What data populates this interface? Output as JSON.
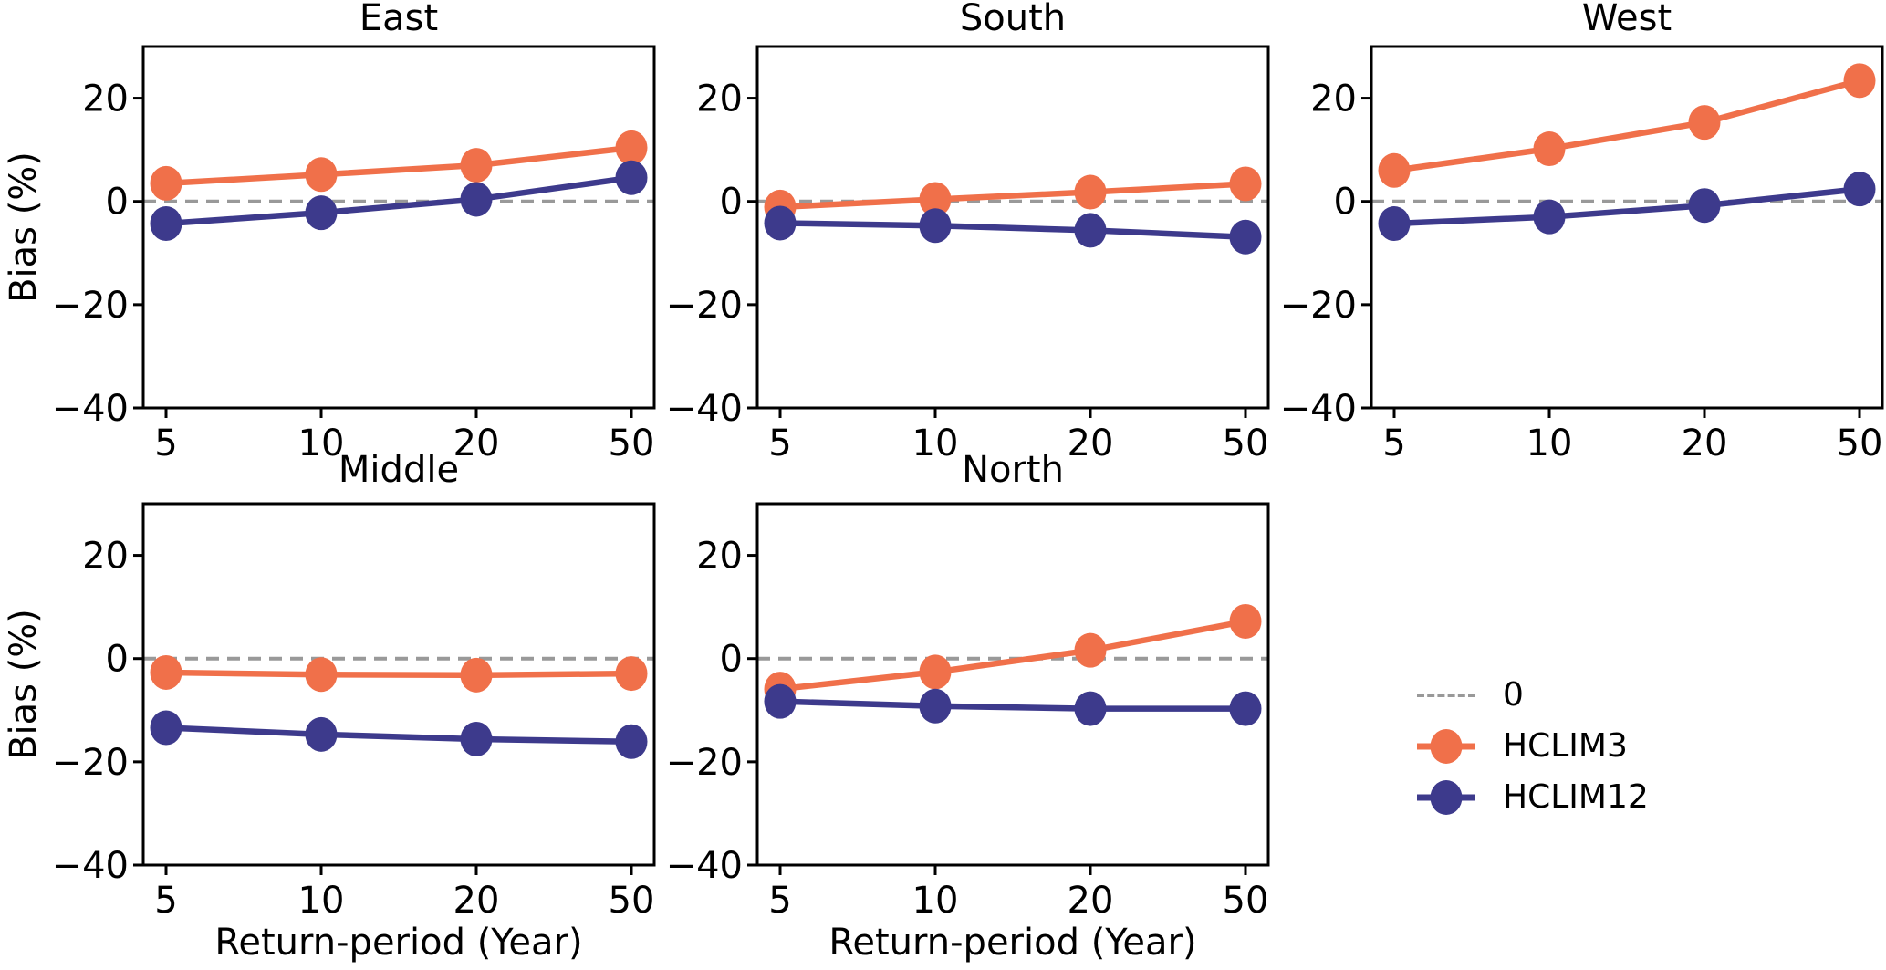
{
  "figure": {
    "ylabel": "Bias (%)",
    "xlabel": "Return-period (Year)",
    "colors": {
      "hclim3": "#F0704A",
      "hclim12": "#3D3A8C",
      "zero": "#999999",
      "axis": "#000000"
    },
    "legend": {
      "position": "lower-right-empty-slot",
      "items": [
        {
          "label": "0",
          "color_key": "zero",
          "style": "dashed-line"
        },
        {
          "label": "HCLIM3",
          "color_key": "hclim3",
          "style": "line-marker"
        },
        {
          "label": "HCLIM12",
          "color_key": "hclim12",
          "style": "line-marker"
        }
      ]
    }
  },
  "chart_data": [
    {
      "type": "line",
      "title": "East",
      "row": 0,
      "col": 0,
      "x": [
        5,
        10,
        20,
        50
      ],
      "xticklabels": [
        "5",
        "10",
        "20",
        "50"
      ],
      "ylim": [
        -40,
        30
      ],
      "yticks": [
        20,
        0,
        -20,
        -40
      ],
      "zero_line": true,
      "grid": false,
      "series": [
        {
          "name": "HCLIM3",
          "values": [
            3.5,
            5.2,
            7.0,
            10.4
          ]
        },
        {
          "name": "HCLIM12",
          "values": [
            -4.3,
            -2.2,
            0.4,
            4.6
          ]
        }
      ]
    },
    {
      "type": "line",
      "title": "South",
      "row": 0,
      "col": 1,
      "x": [
        5,
        10,
        20,
        50
      ],
      "xticklabels": [
        "5",
        "10",
        "20",
        "50"
      ],
      "ylim": [
        -40,
        30
      ],
      "yticks": [
        20,
        0,
        -20,
        -40
      ],
      "zero_line": true,
      "grid": false,
      "series": [
        {
          "name": "HCLIM3",
          "values": [
            -1.1,
            0.4,
            1.8,
            3.4
          ]
        },
        {
          "name": "HCLIM12",
          "values": [
            -4.2,
            -4.7,
            -5.6,
            -6.9
          ]
        }
      ]
    },
    {
      "type": "line",
      "title": "West",
      "row": 0,
      "col": 2,
      "x": [
        5,
        10,
        20,
        50
      ],
      "xticklabels": [
        "5",
        "10",
        "20",
        "50"
      ],
      "ylim": [
        -40,
        30
      ],
      "yticks": [
        20,
        0,
        -20,
        -40
      ],
      "zero_line": true,
      "grid": false,
      "series": [
        {
          "name": "HCLIM3",
          "values": [
            6.0,
            10.2,
            15.3,
            23.4
          ]
        },
        {
          "name": "HCLIM12",
          "values": [
            -4.3,
            -3.0,
            -0.8,
            2.4
          ]
        }
      ]
    },
    {
      "type": "line",
      "title": "Middle",
      "row": 1,
      "col": 0,
      "x": [
        5,
        10,
        20,
        50
      ],
      "xticklabels": [
        "5",
        "10",
        "20",
        "50"
      ],
      "ylim": [
        -40,
        30
      ],
      "yticks": [
        20,
        0,
        -20,
        -40
      ],
      "zero_line": true,
      "grid": false,
      "series": [
        {
          "name": "HCLIM3",
          "values": [
            -2.7,
            -3.1,
            -3.2,
            -2.9
          ]
        },
        {
          "name": "HCLIM12",
          "values": [
            -13.4,
            -14.7,
            -15.6,
            -16.1
          ]
        }
      ]
    },
    {
      "type": "line",
      "title": "North",
      "row": 1,
      "col": 1,
      "x": [
        5,
        10,
        20,
        50
      ],
      "xticklabels": [
        "5",
        "10",
        "20",
        "50"
      ],
      "ylim": [
        -40,
        30
      ],
      "yticks": [
        20,
        0,
        -20,
        -40
      ],
      "zero_line": true,
      "grid": false,
      "series": [
        {
          "name": "HCLIM3",
          "values": [
            -5.9,
            -2.6,
            1.6,
            7.2
          ]
        },
        {
          "name": "HCLIM12",
          "values": [
            -8.3,
            -9.2,
            -9.7,
            -9.7
          ]
        }
      ]
    }
  ]
}
